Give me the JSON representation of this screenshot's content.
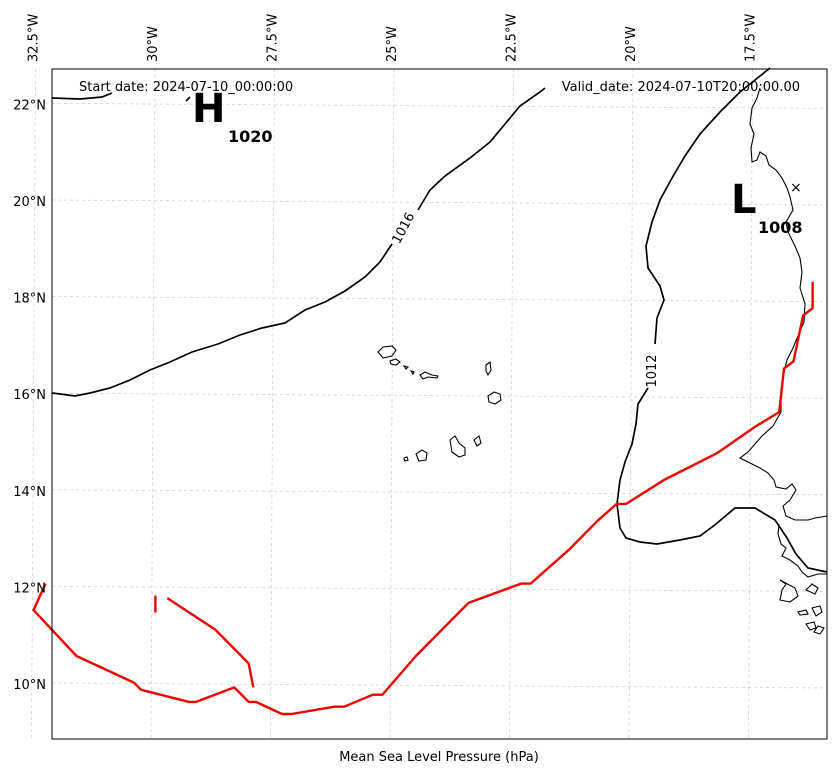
{
  "header": {
    "start_date": "Start date: 2024-07-10_00:00:00",
    "valid_date": "Valid_date: 2024-07-10T20:00:00.00"
  },
  "axis": {
    "xlabel": "Mean Sea Level Pressure (hPa)",
    "lon_ticks": [
      "32.5°W",
      "30°W",
      "27.5°W",
      "25°W",
      "22.5°W",
      "20°W",
      "17.5°W"
    ],
    "lat_ticks": [
      "22°N",
      "20°N",
      "18°N",
      "16°N",
      "14°N",
      "12°N",
      "10°N"
    ]
  },
  "pressure_centers": [
    {
      "type": "H",
      "value": "1020"
    },
    {
      "type": "L",
      "value": "1008"
    }
  ],
  "contour_labels": [
    "1016",
    "1012"
  ],
  "colors": {
    "isobar": "#000000",
    "track": "#ee0000",
    "grid": "#cccccc",
    "coast": "#000000"
  },
  "track_points_lonlat": [
    [
      -32.25,
      12.1
    ],
    [
      -32.5,
      11.55
    ],
    [
      -31.6,
      10.6
    ],
    [
      -30.4,
      10.05
    ],
    [
      -30.25,
      9.9
    ],
    [
      -29.25,
      9.65
    ],
    [
      -29.1,
      9.65
    ],
    [
      -28.3,
      9.95
    ],
    [
      -28.0,
      9.65
    ],
    [
      -27.85,
      9.65
    ],
    [
      -27.3,
      9.4
    ],
    [
      -27.1,
      9.4
    ],
    [
      -26.2,
      9.55
    ],
    [
      -26.0,
      9.55
    ],
    [
      -25.4,
      9.8
    ],
    [
      -25.2,
      9.8
    ],
    [
      -24.5,
      10.6
    ],
    [
      -23.4,
      11.7
    ],
    [
      -22.3,
      12.1
    ],
    [
      -22.1,
      12.1
    ],
    [
      -21.3,
      12.8
    ],
    [
      -20.7,
      13.4
    ],
    [
      -20.3,
      13.75
    ],
    [
      -20.1,
      13.75
    ],
    [
      -19.3,
      14.25
    ],
    [
      -19.0,
      14.4
    ],
    [
      -18.2,
      14.8
    ],
    [
      -17.4,
      15.35
    ],
    [
      -16.9,
      15.65
    ],
    [
      -16.8,
      16.55
    ],
    [
      -16.6,
      16.7
    ],
    [
      -16.4,
      17.65
    ],
    [
      -16.2,
      17.8
    ],
    [
      -16.2,
      18.35
    ]
  ],
  "track_fragments_lonlat": [
    [
      [
        -29.95,
        11.85
      ],
      [
        -29.95,
        11.5
      ]
    ],
    [
      [
        -29.7,
        11.8
      ],
      [
        -28.7,
        11.15
      ],
      [
        -28.0,
        10.45
      ],
      [
        -27.9,
        9.95
      ]
    ]
  ]
}
